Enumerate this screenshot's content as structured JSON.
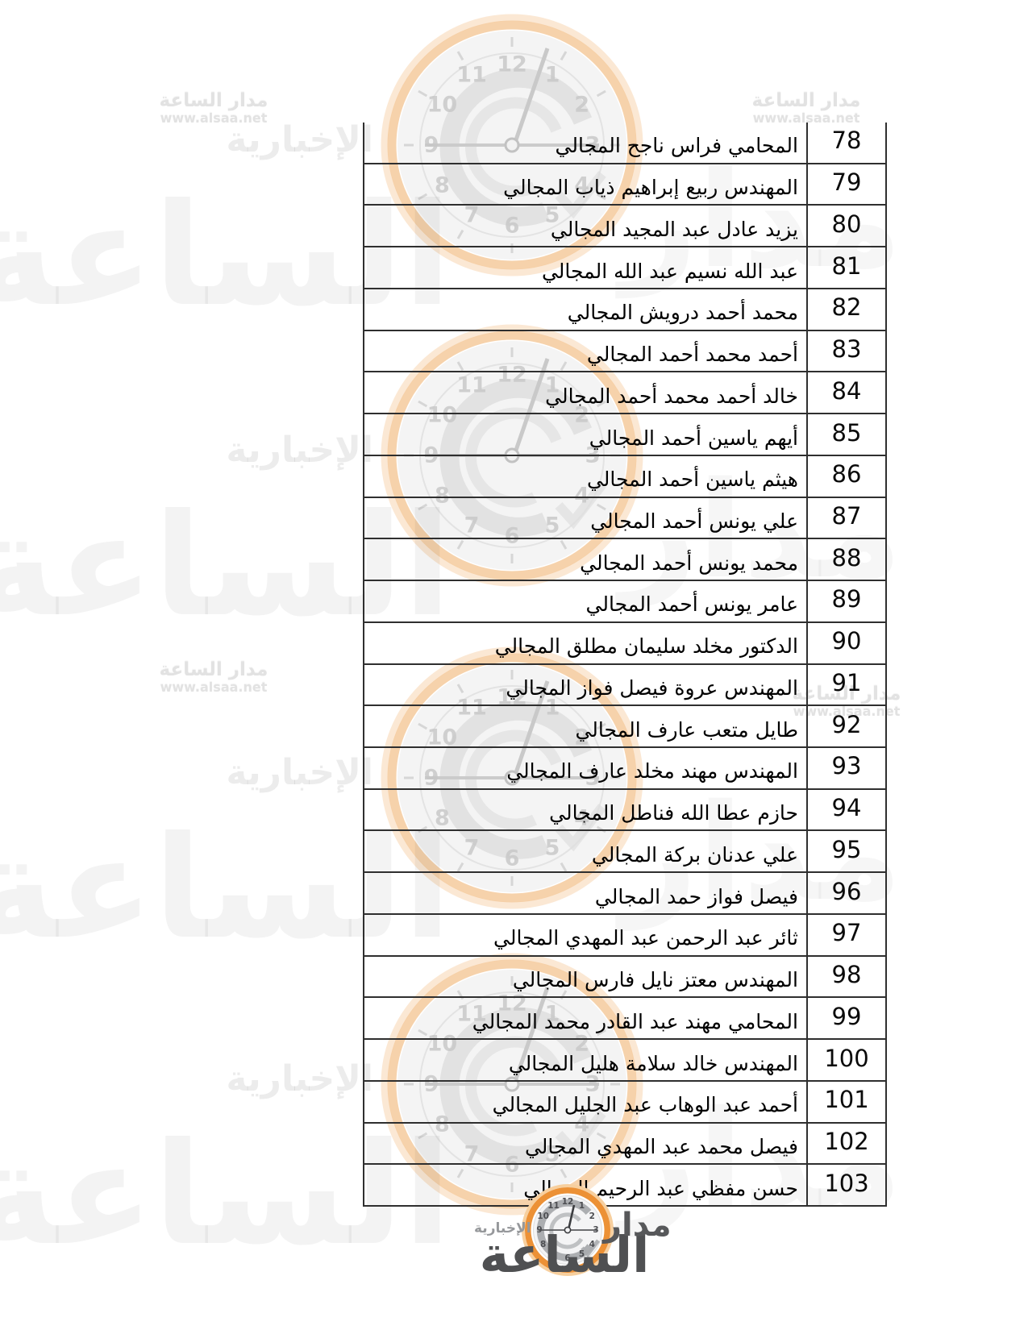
{
  "table": {
    "rows": [
      {
        "num": "78",
        "name": "المحامي فراس ناجح المجالي"
      },
      {
        "num": "79",
        "name": "المهندس ربيع إبراهيم ذياب المجالي"
      },
      {
        "num": "80",
        "name": "يزيد عادل عبد المجيد المجالي"
      },
      {
        "num": "81",
        "name": "عبد الله نسيم عبد الله المجالي"
      },
      {
        "num": "82",
        "name": "محمد أحمد درويش المجالي"
      },
      {
        "num": "83",
        "name": "أحمد محمد أحمد المجالي"
      },
      {
        "num": "84",
        "name": "خالد أحمد محمد أحمد المجالي"
      },
      {
        "num": "85",
        "name": "أيهم ياسين أحمد المجالي"
      },
      {
        "num": "86",
        "name": "هيثم ياسين أحمد المجالي"
      },
      {
        "num": "87",
        "name": "علي يونس أحمد المجالي"
      },
      {
        "num": "88",
        "name": "محمد يونس أحمد المجالي"
      },
      {
        "num": "89",
        "name": "عامر يونس أحمد المجالي"
      },
      {
        "num": "90",
        "name": "الدكتور مخلد سليمان مطلق المجالي"
      },
      {
        "num": "91",
        "name": "المهندس عروة فيصل فواز المجالي"
      },
      {
        "num": "92",
        "name": "طايل متعب عارف المجالي"
      },
      {
        "num": "93",
        "name": "المهندس مهند مخلد عارف المجالي"
      },
      {
        "num": "94",
        "name": "حازم عطا الله فناطل المجالي"
      },
      {
        "num": "95",
        "name": "علي عدنان بركة المجالي"
      },
      {
        "num": "96",
        "name": "فيصل فواز حمد المجالي"
      },
      {
        "num": "97",
        "name": "ثائر عبد الرحمن عبد المهدي المجالي"
      },
      {
        "num": "98",
        "name": "المهندس معتز نايل فارس المجالي"
      },
      {
        "num": "99",
        "name": "المحامي مهند عبد القادر محمد المجالي"
      },
      {
        "num": "100",
        "name": "المهندس خالد سلامة هليل المجالي"
      },
      {
        "num": "101",
        "name": "أحمد عبد الوهاب عبد الجليل المجالي"
      },
      {
        "num": "102",
        "name": "فيصل محمد عبد المهدي المجالي"
      },
      {
        "num": "103",
        "name": "حسن مفظي عبد الرحيم المجالي"
      }
    ]
  },
  "watermark": {
    "brand": "مدار الساعة",
    "url": "www.alsaa.net",
    "word_large": "الساعة",
    "word_right": "مدار",
    "word_news": "الإخبارية"
  },
  "logo": {
    "title_top": "مدار",
    "title_main": "الساعة",
    "subtitle": "الإخبارية",
    "clock_numbers": [
      "12",
      "1",
      "2",
      "3",
      "4",
      "5",
      "6",
      "7",
      "8",
      "9",
      "10",
      "11"
    ]
  },
  "colors": {
    "table_border": "#2f2f2f",
    "logo_orange": "#ec9136",
    "logo_orange_light": "#f7cf9e",
    "logo_text_dark": "#4f5052",
    "logo_text_gray": "#96989b",
    "watermark_ring": "#f5cda2",
    "watermark_gray": "#e2e2e2"
  }
}
